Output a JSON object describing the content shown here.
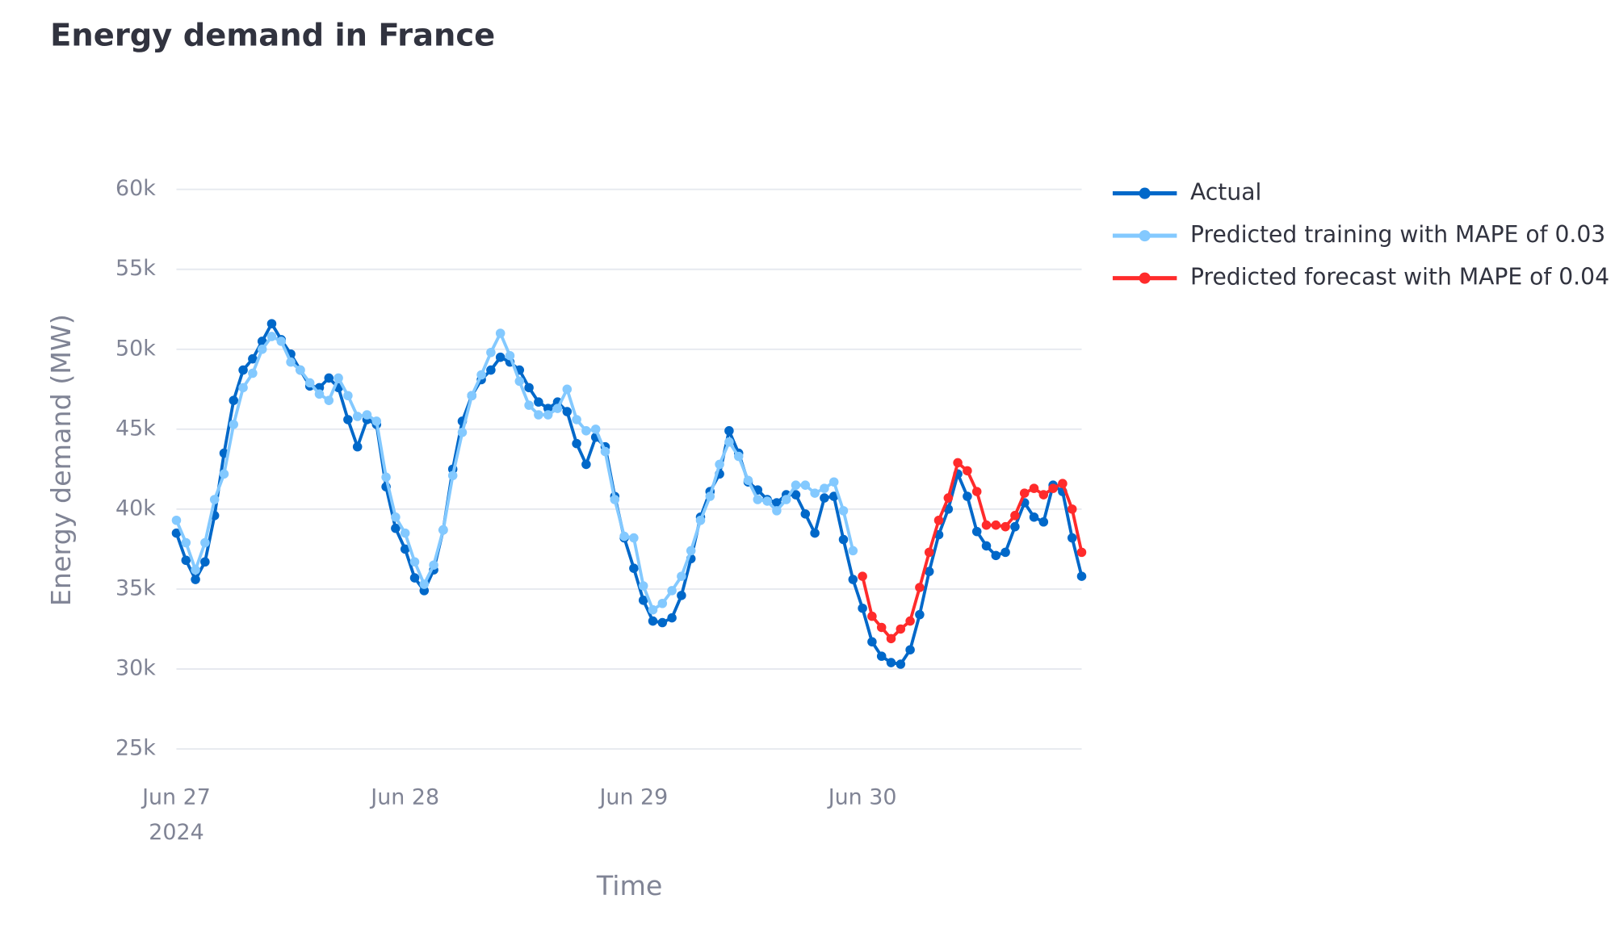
{
  "chart_data": {
    "type": "line",
    "title": "Energy demand in France",
    "x_label": "Time",
    "y_label": "Energy demand (MW)",
    "x_sublabel": "2024",
    "categories": [
      "Jun 27",
      null,
      null,
      null,
      null,
      null,
      null,
      null,
      null,
      null,
      null,
      null,
      null,
      null,
      null,
      null,
      null,
      null,
      null,
      null,
      null,
      null,
      null,
      null,
      "Jun 28",
      null,
      null,
      null,
      null,
      null,
      null,
      null,
      null,
      null,
      null,
      null,
      null,
      null,
      null,
      null,
      null,
      null,
      null,
      null,
      null,
      null,
      null,
      null,
      "Jun 29",
      null,
      null,
      null,
      null,
      null,
      null,
      null,
      null,
      null,
      null,
      null,
      null,
      null,
      null,
      null,
      null,
      null,
      null,
      null,
      null,
      null,
      null,
      null,
      "Jun 30",
      null,
      null,
      null,
      null,
      null,
      null,
      null,
      null,
      null,
      null,
      null,
      null,
      null,
      null,
      null,
      null,
      null,
      null,
      null,
      null,
      null,
      null,
      null
    ],
    "series": [
      {
        "name": "Actual",
        "color": "#0068c9",
        "values": [
          38500,
          36800,
          35600,
          36700,
          39600,
          43500,
          46800,
          48700,
          49400,
          50500,
          51600,
          50600,
          49700,
          48700,
          47700,
          47600,
          48200,
          47600,
          45600,
          43900,
          45600,
          45300,
          41400,
          38800,
          37500,
          35700,
          34900,
          36200,
          38700,
          42500,
          45500,
          47100,
          48100,
          48700,
          49500,
          49200,
          48700,
          47600,
          46700,
          46300,
          46700,
          46100,
          44100,
          42800,
          44500,
          43900,
          40800,
          38200,
          36300,
          34300,
          33000,
          32900,
          33200,
          34600,
          36900,
          39500,
          41100,
          42200,
          44900,
          43500,
          41700,
          41200,
          40600,
          40400,
          40900,
          40900,
          39700,
          38500,
          40700,
          40800,
          38100,
          35600,
          33800,
          31700,
          30800,
          30400,
          30300,
          31200,
          33400,
          36100,
          38400,
          40000,
          42200,
          40800,
          38600,
          37700,
          37100,
          37300,
          38900,
          40400,
          39500,
          39200,
          41500,
          41100,
          38200,
          35800
        ]
      },
      {
        "name": "Predicted training with MAPE of 0.03",
        "color": "#83c9ff",
        "values": [
          39300,
          37900,
          36200,
          37900,
          40600,
          42200,
          45300,
          47600,
          48500,
          50000,
          50800,
          50500,
          49200,
          48700,
          47900,
          47200,
          46800,
          48200,
          47100,
          45800,
          45900,
          45500,
          42000,
          39500,
          38500,
          36700,
          35300,
          36500,
          38700,
          42100,
          44800,
          47100,
          48400,
          49800,
          51000,
          49600,
          48000,
          46500,
          45900,
          45900,
          46300,
          47500,
          45600,
          44900,
          45000,
          43600,
          40600,
          38300,
          38200,
          35200,
          33700,
          34100,
          34900,
          35800,
          37400,
          39300,
          40800,
          42800,
          44200,
          43300,
          41800,
          40600,
          40500,
          39900,
          40600,
          41500,
          41500,
          41000,
          41300,
          41700,
          39900,
          37400,
          null,
          null,
          null,
          null,
          null,
          null,
          null,
          null,
          null,
          null,
          null,
          null,
          null,
          null,
          null,
          null,
          null,
          null,
          null,
          null,
          null,
          null,
          null,
          null
        ]
      },
      {
        "name": "Predicted forecast with MAPE of 0.04",
        "color": "#ff2b2b",
        "values": [
          null,
          null,
          null,
          null,
          null,
          null,
          null,
          null,
          null,
          null,
          null,
          null,
          null,
          null,
          null,
          null,
          null,
          null,
          null,
          null,
          null,
          null,
          null,
          null,
          null,
          null,
          null,
          null,
          null,
          null,
          null,
          null,
          null,
          null,
          null,
          null,
          null,
          null,
          null,
          null,
          null,
          null,
          null,
          null,
          null,
          null,
          null,
          null,
          null,
          null,
          null,
          null,
          null,
          null,
          null,
          null,
          null,
          null,
          null,
          null,
          null,
          null,
          null,
          null,
          null,
          null,
          null,
          null,
          null,
          null,
          null,
          null,
          35800,
          33300,
          32600,
          31900,
          32500,
          33000,
          35100,
          37300,
          39300,
          40700,
          42900,
          42400,
          41100,
          39000,
          39000,
          38900,
          39600,
          41000,
          41300,
          40900,
          41300,
          41600,
          40000,
          37300
        ]
      }
    ],
    "ylim": [
      23600,
      61500
    ],
    "yticks": [
      {
        "value": 25000,
        "label": "25k"
      },
      {
        "value": 30000,
        "label": "30k"
      },
      {
        "value": 35000,
        "label": "35k"
      },
      {
        "value": 40000,
        "label": "40k"
      },
      {
        "value": 45000,
        "label": "45k"
      },
      {
        "value": 50000,
        "label": "50k"
      },
      {
        "value": 55000,
        "label": "55k"
      },
      {
        "value": 60000,
        "label": "60k"
      }
    ],
    "grid": true,
    "legend": "right"
  }
}
